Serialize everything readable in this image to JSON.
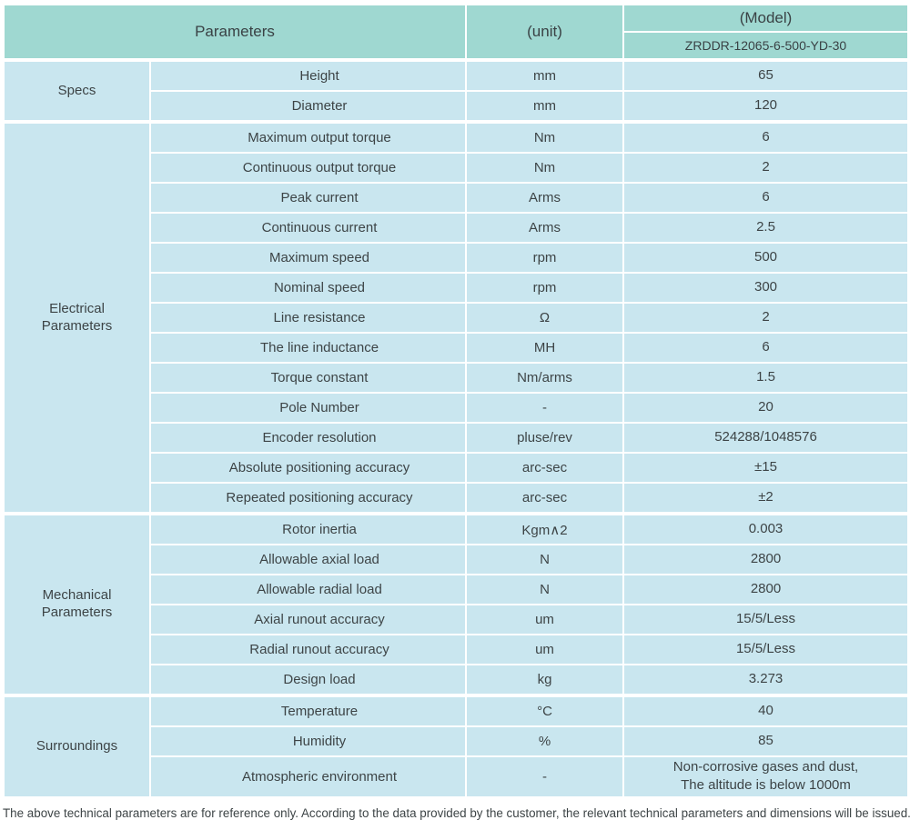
{
  "table": {
    "header": {
      "parameters_label": "Parameters",
      "unit_label": "(unit)",
      "model_label": "(Model)",
      "model_value": "ZRDDR-12065-6-500-YD-30"
    },
    "sections": [
      {
        "label": "Specs",
        "rows": [
          {
            "name": "Height",
            "unit": "mm",
            "value": "65"
          },
          {
            "name": "Diameter",
            "unit": "mm",
            "value": "120"
          }
        ]
      },
      {
        "label": "Electrical Parameters",
        "rows": [
          {
            "name": "Maximum output torque",
            "unit": "Nm",
            "value": "6"
          },
          {
            "name": "Continuous output torque",
            "unit": "Nm",
            "value": "2"
          },
          {
            "name": "Peak current",
            "unit": "Arms",
            "value": "6"
          },
          {
            "name": "Continuous current",
            "unit": "Arms",
            "value": "2.5"
          },
          {
            "name": "Maximum speed",
            "unit": "rpm",
            "value": "500"
          },
          {
            "name": "Nominal speed",
            "unit": "rpm",
            "value": "300"
          },
          {
            "name": "Line resistance",
            "unit": "Ω",
            "value": "2"
          },
          {
            "name": "The line inductance",
            "unit": "MH",
            "value": "6"
          },
          {
            "name": "Torque constant",
            "unit": "Nm/arms",
            "value": "1.5"
          },
          {
            "name": "Pole Number",
            "unit": "-",
            "value": "20"
          },
          {
            "name": "Encoder resolution",
            "unit": "pluse/rev",
            "value": "524288/1048576"
          },
          {
            "name": "Absolute positioning accuracy",
            "unit": "arc-sec",
            "value": "±15"
          },
          {
            "name": "Repeated positioning accuracy",
            "unit": "arc-sec",
            "value": "±2"
          }
        ]
      },
      {
        "label": "Mechanical Parameters",
        "rows": [
          {
            "name": "Rotor inertia",
            "unit": "Kgm∧2",
            "value": "0.003"
          },
          {
            "name": "Allowable axial load",
            "unit": "N",
            "value": "2800"
          },
          {
            "name": "Allowable radial load",
            "unit": "N",
            "value": "2800"
          },
          {
            "name": "Axial runout accuracy",
            "unit": "um",
            "value": "15/5/Less"
          },
          {
            "name": "Radial runout accuracy",
            "unit": "um",
            "value": "15/5/Less"
          },
          {
            "name": "Design load",
            "unit": "kg",
            "value": "3.273"
          }
        ]
      },
      {
        "label": "Surroundings",
        "rows": [
          {
            "name": "Temperature",
            "unit": "°C",
            "value": "40"
          },
          {
            "name": "Humidity",
            "unit": "%",
            "value": "85"
          },
          {
            "name": "Atmospheric environment",
            "unit": "-",
            "value": "Non-corrosive gases and dust,\nThe altitude is below 1000m"
          }
        ]
      }
    ]
  },
  "footer": {
    "note": "The above technical parameters are for reference only. According to the data provided by the customer, the relevant technical parameters and dimensions will be issued."
  },
  "colors": {
    "header_bg": "#9fd8d1",
    "row_bg": "#c9e6ef",
    "border": "#ffffff",
    "text": "#3d4446"
  }
}
